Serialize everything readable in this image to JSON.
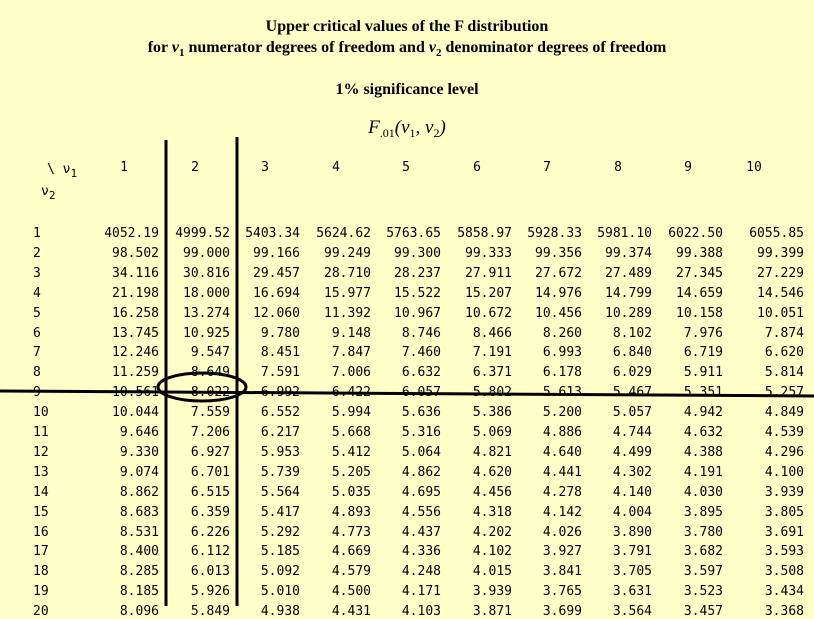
{
  "title_line1": "Upper critical values of the F distribution",
  "title_line2_prefix": "for ",
  "nu_symbol": "ν",
  "nu1_index": "1",
  "title_line2_middle": " numerator degrees of freedom and ",
  "nu2_index": "2",
  "title_line2_suffix": " denominator degrees of freedom",
  "significance_label": "1% significance level",
  "formula": {
    "F": "F",
    "sub": ".01",
    "args": "(ν",
    "i1": "1",
    "comma": ", ν",
    "i2": "2",
    "close": ")"
  },
  "corner": {
    "v1_label": "\\ ν",
    "v1_index": "1",
    "v2_label": "ν",
    "v2_index": "2"
  },
  "column_headers": [
    "1",
    "2",
    "3",
    "4",
    "5",
    "6",
    "7",
    "8",
    "9",
    "10"
  ],
  "rows": [
    {
      "df": "1",
      "values": [
        "4052.19",
        "4999.52",
        "5403.34",
        "5624.62",
        "5763.65",
        "5858.97",
        "5928.33",
        "5981.10",
        "6022.50",
        "6055.85"
      ]
    },
    {
      "df": "2",
      "values": [
        "98.502",
        "99.000",
        "99.166",
        "99.249",
        "99.300",
        "99.333",
        "99.356",
        "99.374",
        "99.388",
        "99.399"
      ]
    },
    {
      "df": "3",
      "values": [
        "34.116",
        "30.816",
        "29.457",
        "28.710",
        "28.237",
        "27.911",
        "27.672",
        "27.489",
        "27.345",
        "27.229"
      ]
    },
    {
      "df": "4",
      "values": [
        "21.198",
        "18.000",
        "16.694",
        "15.977",
        "15.522",
        "15.207",
        "14.976",
        "14.799",
        "14.659",
        "14.546"
      ]
    },
    {
      "df": "5",
      "values": [
        "16.258",
        "13.274",
        "12.060",
        "11.392",
        "10.967",
        "10.672",
        "10.456",
        "10.289",
        "10.158",
        "10.051"
      ]
    },
    {
      "df": "6",
      "values": [
        "13.745",
        "10.925",
        "9.780",
        "9.148",
        "8.746",
        "8.466",
        "8.260",
        "8.102",
        "7.976",
        "7.874"
      ]
    },
    {
      "df": "7",
      "values": [
        "12.246",
        "9.547",
        "8.451",
        "7.847",
        "7.460",
        "7.191",
        "6.993",
        "6.840",
        "6.719",
        "6.620"
      ]
    },
    {
      "df": "8",
      "values": [
        "11.259",
        "8.649",
        "7.591",
        "7.006",
        "6.632",
        "6.371",
        "6.178",
        "6.029",
        "5.911",
        "5.814"
      ]
    },
    {
      "df": "9",
      "values": [
        "10.561",
        "8.022",
        "6.992",
        "6.422",
        "6.057",
        "5.802",
        "5.613",
        "5.467",
        "5.351",
        "5.257"
      ]
    },
    {
      "df": "10",
      "values": [
        "10.044",
        "7.559",
        "6.552",
        "5.994",
        "5.636",
        "5.386",
        "5.200",
        "5.057",
        "4.942",
        "4.849"
      ]
    },
    {
      "df": "11",
      "values": [
        "9.646",
        "7.206",
        "6.217",
        "5.668",
        "5.316",
        "5.069",
        "4.886",
        "4.744",
        "4.632",
        "4.539"
      ]
    },
    {
      "df": "12",
      "values": [
        "9.330",
        "6.927",
        "5.953",
        "5.412",
        "5.064",
        "4.821",
        "4.640",
        "4.499",
        "4.388",
        "4.296"
      ]
    },
    {
      "df": "13",
      "values": [
        "9.074",
        "6.701",
        "5.739",
        "5.205",
        "4.862",
        "4.620",
        "4.441",
        "4.302",
        "4.191",
        "4.100"
      ]
    },
    {
      "df": "14",
      "values": [
        "8.862",
        "6.515",
        "5.564",
        "5.035",
        "4.695",
        "4.456",
        "4.278",
        "4.140",
        "4.030",
        "3.939"
      ]
    },
    {
      "df": "15",
      "values": [
        "8.683",
        "6.359",
        "5.417",
        "4.893",
        "4.556",
        "4.318",
        "4.142",
        "4.004",
        "3.895",
        "3.805"
      ]
    },
    {
      "df": "16",
      "values": [
        "8.531",
        "6.226",
        "5.292",
        "4.773",
        "4.437",
        "4.202",
        "4.026",
        "3.890",
        "3.780",
        "3.691"
      ]
    },
    {
      "df": "17",
      "values": [
        "8.400",
        "6.112",
        "5.185",
        "4.669",
        "4.336",
        "4.102",
        "3.927",
        "3.791",
        "3.682",
        "3.593"
      ]
    },
    {
      "df": "18",
      "values": [
        "8.285",
        "6.013",
        "5.092",
        "4.579",
        "4.248",
        "4.015",
        "3.841",
        "3.705",
        "3.597",
        "3.508"
      ]
    },
    {
      "df": "19",
      "values": [
        "8.185",
        "5.926",
        "5.010",
        "4.500",
        "4.171",
        "3.939",
        "3.765",
        "3.631",
        "3.523",
        "3.434"
      ]
    },
    {
      "df": "20",
      "values": [
        "8.096",
        "5.849",
        "4.938",
        "4.431",
        "4.103",
        "3.871",
        "3.699",
        "3.564",
        "3.457",
        "3.368"
      ]
    }
  ],
  "highlight": {
    "row_df": "9",
    "column": "2",
    "value": "8.022"
  },
  "colors": {
    "background": "#ffffc8",
    "ink": "#000000"
  }
}
